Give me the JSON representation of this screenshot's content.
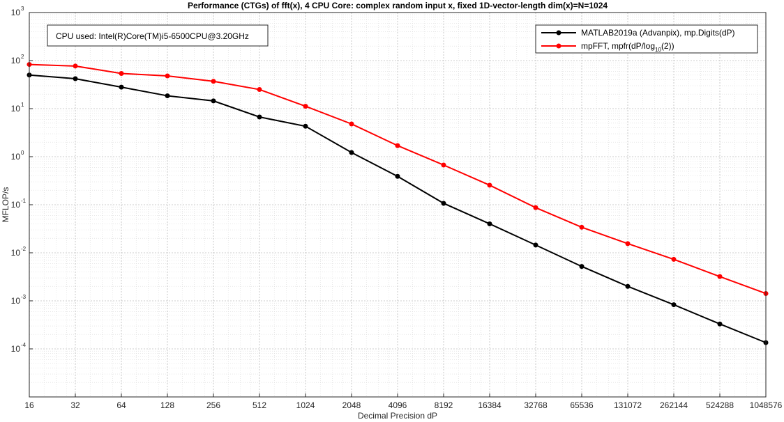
{
  "chart_data": {
    "type": "line",
    "title": "Performance (CTGs) of fft(x), 4 CPU Core: complex random input x, fixed 1D-vector-length dim(x)=N=1024",
    "xlabel": "Decimal Precision dP",
    "ylabel": "MFLOP/s",
    "x_scale": "log2",
    "y_scale": "log10",
    "grid": true,
    "minor_grid": true,
    "legend_position": "top-right",
    "x": [
      16,
      32,
      64,
      128,
      256,
      512,
      1024,
      2048,
      4096,
      8192,
      16384,
      32768,
      65536,
      131072,
      262144,
      524288,
      1048576
    ],
    "x_tick_labels": [
      "16",
      "32",
      "64",
      "128",
      "256",
      "512",
      "1024",
      "2048",
      "4096",
      "8192",
      "16384",
      "32768",
      "65536",
      "131072",
      "262144",
      "524288",
      "1048576"
    ],
    "ylim": [
      1e-05,
      1000
    ],
    "y_ticks": [
      {
        "mantissa": "10",
        "exponent": "-4",
        "value": 0.0001
      },
      {
        "mantissa": "10",
        "exponent": "-3",
        "value": 0.001
      },
      {
        "mantissa": "10",
        "exponent": "-2",
        "value": 0.01
      },
      {
        "mantissa": "10",
        "exponent": "-1",
        "value": 0.1
      },
      {
        "mantissa": "10",
        "exponent": "0",
        "value": 1
      },
      {
        "mantissa": "10",
        "exponent": "1",
        "value": 10
      },
      {
        "mantissa": "10",
        "exponent": "2",
        "value": 100
      },
      {
        "mantissa": "10",
        "exponent": "3",
        "value": 1000
      }
    ],
    "series": [
      {
        "name": "MATLAB2019a (Advanpix), mp.Digits(dP)",
        "color": "#000000",
        "values": [
          50,
          42,
          28,
          18.5,
          14.5,
          6.7,
          4.3,
          1.22,
          0.39,
          0.107,
          0.04,
          0.0145,
          0.0052,
          0.002,
          0.00083,
          0.00033,
          0.000135
        ]
      },
      {
        "name": "mpFFT, mpfr(dP/log",
        "name_subscript": "10",
        "name_suffix": "(2))",
        "color": "#ff0000",
        "values": [
          83,
          77,
          54,
          48,
          37,
          25,
          11.2,
          4.8,
          1.7,
          0.67,
          0.255,
          0.087,
          0.034,
          0.0155,
          0.0073,
          0.0032,
          0.00142
        ]
      }
    ],
    "annotation": "CPU used: Intel(R)Core(TM)i5-6500CPU@3.20GHz"
  }
}
